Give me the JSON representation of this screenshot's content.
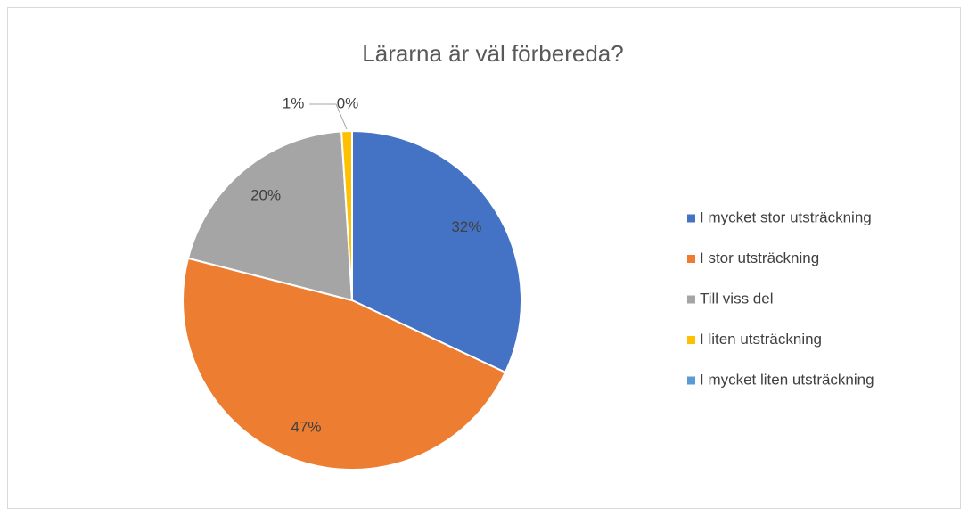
{
  "chart_data": {
    "type": "pie",
    "title": "Lärarna är väl förbereda?",
    "categories": [
      "I mycket stor utsträckning",
      "I stor utsträckning",
      "Till viss del",
      "I liten utsträckning",
      "I mycket liten utsträckning"
    ],
    "values": [
      32,
      47,
      20,
      1,
      0
    ],
    "value_labels": [
      "32%",
      "47%",
      "20%",
      "1%",
      "0%"
    ],
    "colors": [
      "#4472c4",
      "#ed7d31",
      "#a5a5a5",
      "#ffc000",
      "#5b9bd5"
    ],
    "legend": "right"
  }
}
